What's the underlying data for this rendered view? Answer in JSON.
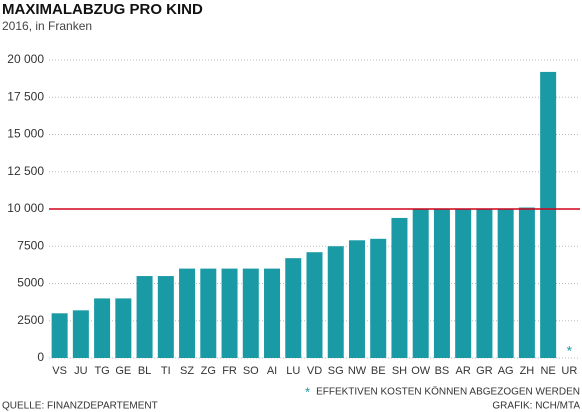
{
  "chart_data": {
    "type": "bar",
    "title": "MAXIMALABZUG PRO KIND",
    "subtitle": "2016, in Franken",
    "categories": [
      "VS",
      "JU",
      "TG",
      "GE",
      "BL",
      "TI",
      "SZ",
      "ZG",
      "FR",
      "SO",
      "AI",
      "LU",
      "VD",
      "SG",
      "NW",
      "BE",
      "SH",
      "OW",
      "BS",
      "AR",
      "GR",
      "AG",
      "ZH",
      "NE",
      "UR"
    ],
    "values": [
      3000,
      3200,
      4000,
      4000,
      5500,
      5500,
      6000,
      6000,
      6000,
      6000,
      6000,
      6700,
      7100,
      7500,
      7900,
      8000,
      9400,
      10000,
      10000,
      10000,
      10000,
      10000,
      10100,
      19200,
      null
    ],
    "color": "#1a9aa5",
    "ylim": [
      0,
      20000
    ],
    "yticks": [
      0,
      2500,
      5000,
      7500,
      {
        "value": 10000,
        "label": "10 000"
      },
      {
        "value": 12500,
        "label": "12 500"
      },
      {
        "value": 15000,
        "label": "15 000"
      },
      {
        "value": 17500,
        "label": "17 500"
      },
      {
        "value": 20000,
        "label": "20 000"
      }
    ],
    "grid": true,
    "reference_line": {
      "value": 10000,
      "color": "#d0021b"
    },
    "note_symbol": "*",
    "note": "EFFEKTIVEN KOSTEN KÖNNEN ABGEZOGEN WERDEN",
    "source": "QUELLE: FINANZDEPARTEMENT",
    "credit": "GRAFIK: NCH/MTA"
  }
}
